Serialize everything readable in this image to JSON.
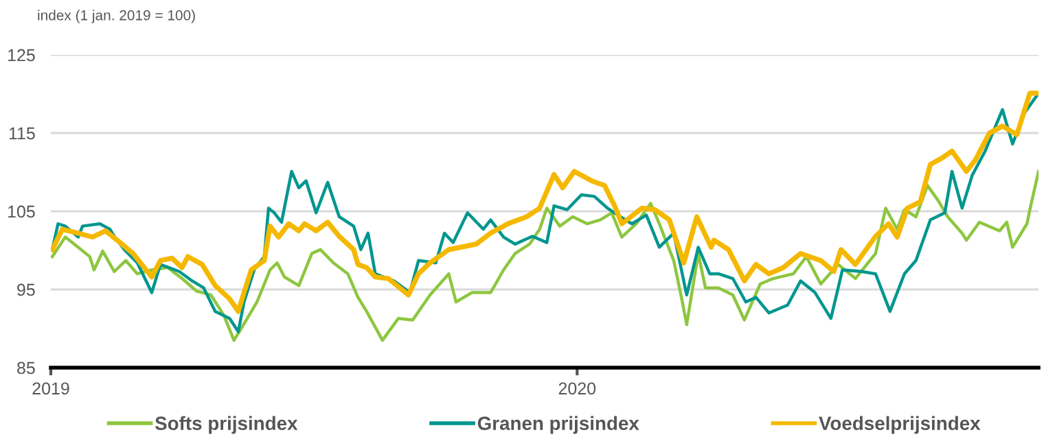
{
  "chart_data": {
    "type": "line",
    "ylabel": "index (1 jan. 2019 = 100)",
    "xlim": [
      "2019-01-01",
      "2020-11-16"
    ],
    "xticks": [
      {
        "value": "2019-01-01",
        "label": "2019"
      },
      {
        "value": "2020-01-01",
        "label": "2020"
      }
    ],
    "ylim": [
      85,
      125
    ],
    "yticks": [
      85,
      95,
      105,
      115,
      125
    ],
    "grid": "y",
    "legend": "bottom",
    "line_style": "solid",
    "marker": "none",
    "series": [
      {
        "name": "Softs prijsindex",
        "color": "#8dc63f",
        "x": [
          "2019-01-02",
          "2019-01-11",
          "2019-01-20",
          "2019-01-28",
          "2019-01-31",
          "2019-02-06",
          "2019-02-14",
          "2019-02-22",
          "2019-03-02",
          "2019-03-12",
          "2019-03-23",
          "2019-04-02",
          "2019-04-12",
          "2019-04-22",
          "2019-05-01",
          "2019-05-08",
          "2019-05-14",
          "2019-05-24",
          "2019-06-02",
          "2019-06-07",
          "2019-06-12",
          "2019-06-22",
          "2019-07-01",
          "2019-07-07",
          "2019-07-16",
          "2019-07-26",
          "2019-08-02",
          "2019-08-08",
          "2019-08-19",
          "2019-08-30",
          "2019-09-09",
          "2019-09-21",
          "2019-10-04",
          "2019-10-09",
          "2019-10-20",
          "2019-11-02",
          "2019-11-11",
          "2019-11-19",
          "2019-11-29",
          "2019-12-06",
          "2019-12-11",
          "2019-12-20",
          "2019-12-29",
          "2020-01-08",
          "2020-01-17",
          "2020-01-25",
          "2020-02-01",
          "2020-02-11",
          "2020-02-21",
          "2020-02-27",
          "2020-03-08",
          "2020-03-14",
          "2020-03-17",
          "2020-03-25",
          "2020-03-30",
          "2020-04-08",
          "2020-04-18",
          "2020-04-26",
          "2020-05-07",
          "2020-05-16",
          "2020-05-30",
          "2020-06-08",
          "2020-06-18",
          "2020-06-30",
          "2020-07-12",
          "2020-07-26",
          "2020-08-02",
          "2020-08-10",
          "2020-08-15",
          "2020-08-23",
          "2020-08-31",
          "2020-09-08",
          "2020-09-14",
          "2020-09-24",
          "2020-09-27",
          "2020-10-06",
          "2020-10-20",
          "2020-10-25",
          "2020-10-29",
          "2020-11-08",
          "2020-11-10",
          "2020-11-16"
        ],
        "values": [
          99.2,
          101.7,
          100.4,
          99.2,
          97.5,
          99.9,
          97.3,
          98.7,
          97,
          97.5,
          97.8,
          96.4,
          94.8,
          94.3,
          91.7,
          88.5,
          90.3,
          93.4,
          97.5,
          98.4,
          96.6,
          95.5,
          99.6,
          100.1,
          98.4,
          97,
          94,
          92.2,
          88.5,
          91.3,
          91.1,
          94.3,
          97,
          93.4,
          94.6,
          94.6,
          97.5,
          99.6,
          100.8,
          102.7,
          105.4,
          103.1,
          104.3,
          103.4,
          103.9,
          104.8,
          101.7,
          103.4,
          106,
          103.4,
          98.7,
          93.4,
          90.5,
          99.6,
          95.2,
          95.2,
          94.3,
          91.1,
          95.7,
          96.4,
          97,
          99.2,
          95.7,
          98.2,
          96.4,
          99.6,
          105.4,
          102.7,
          105.2,
          104.3,
          108.3,
          106.2,
          104.3,
          102.2,
          101.3,
          103.6,
          102.5,
          103.6,
          100.4,
          103.4,
          105.2,
          110.1
        ]
      },
      {
        "name": "Granen prijsindex",
        "color": "#00968f",
        "x": [
          "2019-01-02",
          "2019-01-06",
          "2019-01-11",
          "2019-01-20",
          "2019-01-23",
          "2019-02-04",
          "2019-02-11",
          "2019-02-14",
          "2019-02-21",
          "2019-03-02",
          "2019-03-12",
          "2019-03-18",
          "2019-03-31",
          "2019-04-09",
          "2019-04-17",
          "2019-04-25",
          "2019-05-05",
          "2019-05-11",
          "2019-05-15",
          "2019-05-22",
          "2019-05-29",
          "2019-06-01",
          "2019-06-05",
          "2019-06-10",
          "2019-06-17",
          "2019-06-22",
          "2019-06-27",
          "2019-07-04",
          "2019-07-12",
          "2019-07-20",
          "2019-07-30",
          "2019-08-04",
          "2019-08-09",
          "2019-08-14",
          "2019-08-27",
          "2019-09-07",
          "2019-09-13",
          "2019-09-25",
          "2019-10-01",
          "2019-10-07",
          "2019-10-17",
          "2019-10-28",
          "2019-11-02",
          "2019-11-11",
          "2019-11-19",
          "2019-12-01",
          "2019-12-11",
          "2019-12-16",
          "2019-12-25",
          "2020-01-04",
          "2020-01-13",
          "2020-01-22",
          "2020-01-31",
          "2020-02-08",
          "2020-02-18",
          "2020-02-27",
          "2020-03-08",
          "2020-03-17",
          "2020-03-25",
          "2020-04-02",
          "2020-04-08",
          "2020-04-18",
          "2020-04-27",
          "2020-05-04",
          "2020-05-13",
          "2020-05-26",
          "2020-06-04",
          "2020-06-14",
          "2020-06-25",
          "2020-07-03",
          "2020-07-16",
          "2020-07-26",
          "2020-08-05",
          "2020-08-15",
          "2020-08-23",
          "2020-09-02",
          "2020-09-12",
          "2020-09-17",
          "2020-09-24",
          "2020-10-01",
          "2020-10-10",
          "2020-10-22",
          "2020-10-29",
          "2020-11-06",
          "2020-11-16"
        ],
        "values": [
          100.1,
          103.4,
          103.1,
          101.7,
          103.1,
          103.4,
          102.7,
          101.8,
          100.1,
          98.4,
          94.6,
          98.2,
          97.3,
          96.1,
          95.2,
          92.2,
          91.3,
          89.6,
          93.4,
          97.5,
          99.2,
          105.4,
          104.8,
          103.6,
          110.1,
          108,
          108.9,
          104.8,
          108.7,
          104.3,
          103.1,
          100.1,
          102.2,
          97,
          96.1,
          94.6,
          98.7,
          98.4,
          102.2,
          101,
          104.8,
          102.7,
          103.9,
          101.7,
          100.8,
          101.8,
          101,
          105.7,
          105.2,
          107.1,
          106.9,
          105.4,
          104.3,
          103.4,
          104.5,
          100.4,
          102.2,
          94.3,
          100.4,
          97,
          97,
          96.4,
          93.4,
          94,
          92,
          93,
          96.1,
          94.6,
          91.3,
          97.5,
          97.3,
          97,
          92.2,
          97,
          98.7,
          103.9,
          104.8,
          110.1,
          105.4,
          109.6,
          112.7,
          118,
          113.6,
          117.5,
          120.1
        ]
      },
      {
        "name": "Voedselprijsindex",
        "color": "#f5b800",
        "x": [
          "2019-01-02",
          "2019-01-09",
          "2019-01-20",
          "2019-01-30",
          "2019-02-08",
          "2019-02-18",
          "2019-02-27",
          "2019-03-12",
          "2019-03-18",
          "2019-03-26",
          "2019-04-02",
          "2019-04-06",
          "2019-04-16",
          "2019-04-25",
          "2019-05-05",
          "2019-05-11",
          "2019-05-15",
          "2019-05-20",
          "2019-05-29",
          "2019-06-02",
          "2019-06-08",
          "2019-06-15",
          "2019-06-22",
          "2019-06-26",
          "2019-07-04",
          "2019-07-12",
          "2019-07-20",
          "2019-07-30",
          "2019-08-02",
          "2019-08-08",
          "2019-08-14",
          "2019-08-23",
          "2019-09-06",
          "2019-09-13",
          "2019-09-21",
          "2019-10-04",
          "2019-10-23",
          "2019-11-02",
          "2019-11-14",
          "2019-11-27",
          "2019-12-06",
          "2019-12-16",
          "2019-12-22",
          "2019-12-30",
          "2020-01-11",
          "2020-01-20",
          "2020-01-27",
          "2020-02-01",
          "2020-02-15",
          "2020-02-24",
          "2020-03-05",
          "2020-03-15",
          "2020-03-24",
          "2020-04-03",
          "2020-04-05",
          "2020-04-15",
          "2020-04-26",
          "2020-05-04",
          "2020-05-13",
          "2020-05-23",
          "2020-06-04",
          "2020-06-18",
          "2020-06-27",
          "2020-07-02",
          "2020-07-12",
          "2020-07-26",
          "2020-08-04",
          "2020-08-10",
          "2020-08-17",
          "2020-08-26",
          "2020-09-02",
          "2020-09-10",
          "2020-09-17",
          "2020-09-27",
          "2020-10-03",
          "2020-10-13",
          "2020-10-22",
          "2020-11-01",
          "2020-11-10",
          "2020-11-16"
        ],
        "values": [
          100.1,
          102.7,
          102.2,
          101.7,
          102.5,
          101,
          99.6,
          96.6,
          98.7,
          99,
          97.8,
          99.2,
          98.2,
          95.5,
          93.8,
          92.2,
          94.6,
          97.5,
          98.7,
          103.1,
          101.7,
          103.4,
          102.5,
          103.4,
          102.5,
          103.6,
          101.8,
          100.1,
          98.2,
          97.8,
          96.6,
          96.4,
          94.3,
          97,
          98.4,
          100.1,
          100.8,
          102.2,
          103.4,
          104.3,
          105.4,
          109.7,
          108,
          110.1,
          108.9,
          108.3,
          105.7,
          103.4,
          105.4,
          105.2,
          103.9,
          98.4,
          104.3,
          100.4,
          101.3,
          100.1,
          96.1,
          98.2,
          97,
          97.8,
          99.6,
          98.7,
          97.3,
          100.1,
          98.2,
          101.8,
          103.4,
          101.7,
          105.4,
          106.2,
          111,
          111.8,
          112.7,
          110.1,
          111.5,
          115,
          115.9,
          114.8,
          120.1,
          120.1
        ]
      }
    ]
  }
}
